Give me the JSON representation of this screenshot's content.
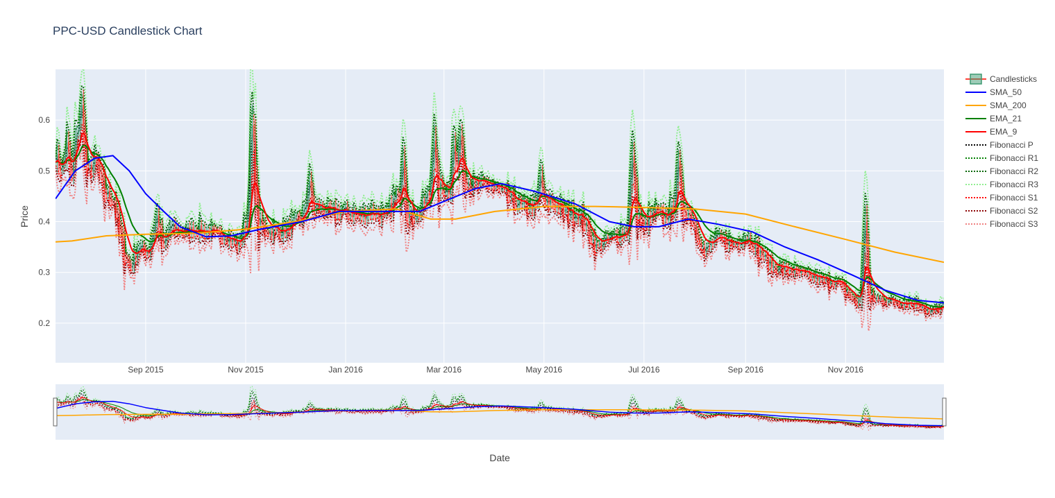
{
  "chart_data": {
    "type": "candlestick",
    "title": "PPC-USD Candlestick Chart",
    "xlabel": "Date",
    "ylabel": "Price",
    "x_range": [
      "2015-07-08",
      "2016-12-31"
    ],
    "ylim": [
      0.122,
      0.7
    ],
    "y_ticks": [
      0.2,
      0.3,
      0.4,
      0.5,
      0.6
    ],
    "y_tick_labels": [
      "0.2",
      "0.3",
      "0.4",
      "0.5",
      "0.6"
    ],
    "x_ticks": [
      "2015-09-01",
      "2015-11-01",
      "2016-01-01",
      "2016-03-01",
      "2016-05-01",
      "2016-07-01",
      "2016-09-01",
      "2016-11-01"
    ],
    "x_tick_labels": [
      "Sep 2015",
      "Nov 2015",
      "Jan 2016",
      "Mar 2016",
      "May 2016",
      "Jul 2016",
      "Sep 2016",
      "Nov 2016"
    ],
    "grid": true,
    "legend_position": "right",
    "rangeslider": true,
    "colors": {
      "plot_bg": "#e5ecf6",
      "grid": "#ffffff",
      "text": "#444444",
      "title": "#2a3f5f",
      "increasing": "#3d9970",
      "decreasing": "#ff4136"
    },
    "close_anchors": [
      [
        "2015-07-08",
        0.53
      ],
      [
        "2015-07-12",
        0.5
      ],
      [
        "2015-07-15",
        0.55
      ],
      [
        "2015-07-18",
        0.49
      ],
      [
        "2015-07-21",
        0.58
      ],
      [
        "2015-07-24",
        0.55
      ],
      [
        "2015-07-28",
        0.5
      ],
      [
        "2015-08-02",
        0.52
      ],
      [
        "2015-08-07",
        0.46
      ],
      [
        "2015-08-13",
        0.44
      ],
      [
        "2015-08-19",
        0.34
      ],
      [
        "2015-08-23",
        0.31
      ],
      [
        "2015-08-28",
        0.35
      ],
      [
        "2015-09-03",
        0.34
      ],
      [
        "2015-09-08",
        0.41
      ],
      [
        "2015-09-12",
        0.35
      ],
      [
        "2015-09-16",
        0.39
      ],
      [
        "2015-09-24",
        0.38
      ],
      [
        "2015-10-01",
        0.385
      ],
      [
        "2015-10-10",
        0.38
      ],
      [
        "2015-10-20",
        0.37
      ],
      [
        "2015-10-28",
        0.355
      ],
      [
        "2015-11-03",
        0.41
      ],
      [
        "2015-11-06",
        0.5
      ],
      [
        "2015-11-09",
        0.4
      ],
      [
        "2015-11-15",
        0.38
      ],
      [
        "2015-11-24",
        0.38
      ],
      [
        "2015-12-01",
        0.4
      ],
      [
        "2015-12-08",
        0.42
      ],
      [
        "2015-12-15",
        0.43
      ],
      [
        "2015-12-22",
        0.42
      ],
      [
        "2016-01-01",
        0.42
      ],
      [
        "2016-01-10",
        0.41
      ],
      [
        "2016-01-17",
        0.42
      ],
      [
        "2016-01-25",
        0.41
      ],
      [
        "2016-02-01",
        0.45
      ],
      [
        "2016-02-06",
        0.42
      ],
      [
        "2016-02-14",
        0.41
      ],
      [
        "2016-02-20",
        0.45
      ],
      [
        "2016-02-26",
        0.47
      ],
      [
        "2016-03-05",
        0.46
      ],
      [
        "2016-03-12",
        0.5
      ],
      [
        "2016-03-18",
        0.47
      ],
      [
        "2016-03-28",
        0.475
      ],
      [
        "2016-04-07",
        0.455
      ],
      [
        "2016-04-17",
        0.43
      ],
      [
        "2016-04-27",
        0.43
      ],
      [
        "2016-05-05",
        0.44
      ],
      [
        "2016-05-14",
        0.42
      ],
      [
        "2016-05-24",
        0.41
      ],
      [
        "2016-06-02",
        0.35
      ],
      [
        "2016-06-12",
        0.37
      ],
      [
        "2016-06-20",
        0.38
      ],
      [
        "2016-06-25",
        0.44
      ],
      [
        "2016-07-01",
        0.39
      ],
      [
        "2016-07-08",
        0.42
      ],
      [
        "2016-07-15",
        0.41
      ],
      [
        "2016-07-22",
        0.44
      ],
      [
        "2016-07-30",
        0.41
      ],
      [
        "2016-08-07",
        0.34
      ],
      [
        "2016-08-15",
        0.37
      ],
      [
        "2016-08-25",
        0.355
      ],
      [
        "2016-09-02",
        0.37
      ],
      [
        "2016-09-10",
        0.34
      ],
      [
        "2016-09-18",
        0.31
      ],
      [
        "2016-09-28",
        0.305
      ],
      [
        "2016-10-08",
        0.295
      ],
      [
        "2016-10-18",
        0.285
      ],
      [
        "2016-10-28",
        0.28
      ],
      [
        "2016-11-08",
        0.24
      ],
      [
        "2016-11-12",
        0.27
      ],
      [
        "2016-11-18",
        0.25
      ],
      [
        "2016-11-26",
        0.245
      ],
      [
        "2016-12-04",
        0.24
      ],
      [
        "2016-12-12",
        0.24
      ],
      [
        "2016-12-18",
        0.235
      ],
      [
        "2016-12-22",
        0.22
      ],
      [
        "2016-12-31",
        0.235
      ]
    ],
    "spikes": [
      [
        "2015-07-24",
        0.63
      ],
      [
        "2015-11-05",
        0.59
      ],
      [
        "2015-12-10",
        0.48
      ],
      [
        "2016-02-05",
        0.52
      ],
      [
        "2016-02-24",
        0.56
      ],
      [
        "2016-03-07",
        0.55
      ],
      [
        "2016-03-11",
        0.57
      ],
      [
        "2016-04-29",
        0.49
      ],
      [
        "2016-06-24",
        0.53
      ],
      [
        "2016-07-22",
        0.52
      ],
      [
        "2016-11-13",
        0.4
      ]
    ],
    "series": [
      {
        "name": "Candlesticks",
        "color": "#3d9970",
        "dash": "solid"
      },
      {
        "name": "SMA_50",
        "color": "#0000ff",
        "dash": "solid",
        "values": [
          [
            "2015-07-08",
            0.445
          ],
          [
            "2015-07-20",
            0.5
          ],
          [
            "2015-08-01",
            0.525
          ],
          [
            "2015-08-12",
            0.53
          ],
          [
            "2015-08-22",
            0.5
          ],
          [
            "2015-09-01",
            0.455
          ],
          [
            "2015-09-12",
            0.42
          ],
          [
            "2015-09-22",
            0.39
          ],
          [
            "2015-10-08",
            0.37
          ],
          [
            "2015-10-23",
            0.372
          ],
          [
            "2015-11-10",
            0.385
          ],
          [
            "2015-12-05",
            0.4
          ],
          [
            "2015-12-28",
            0.42
          ],
          [
            "2016-01-20",
            0.42
          ],
          [
            "2016-02-15",
            0.42
          ],
          [
            "2016-03-01",
            0.44
          ],
          [
            "2016-03-20",
            0.465
          ],
          [
            "2016-04-05",
            0.475
          ],
          [
            "2016-04-25",
            0.46
          ],
          [
            "2016-05-20",
            0.435
          ],
          [
            "2016-06-10",
            0.4
          ],
          [
            "2016-06-25",
            0.39
          ],
          [
            "2016-07-10",
            0.39
          ],
          [
            "2016-07-28",
            0.405
          ],
          [
            "2016-08-15",
            0.395
          ],
          [
            "2016-09-05",
            0.38
          ],
          [
            "2016-09-25",
            0.35
          ],
          [
            "2016-10-15",
            0.325
          ],
          [
            "2016-11-05",
            0.295
          ],
          [
            "2016-11-25",
            0.265
          ],
          [
            "2016-12-15",
            0.245
          ],
          [
            "2016-12-31",
            0.24
          ]
        ]
      },
      {
        "name": "SMA_200",
        "color": "#ffa500",
        "dash": "solid",
        "values": [
          [
            "2015-07-08",
            0.36
          ],
          [
            "2015-07-18",
            0.362
          ],
          [
            "2015-08-08",
            0.372
          ],
          [
            "2015-09-01",
            0.375
          ],
          [
            "2015-10-01",
            0.377
          ],
          [
            "2015-11-01",
            0.385
          ],
          [
            "2015-12-01",
            0.4
          ],
          [
            "2016-01-01",
            0.42
          ],
          [
            "2016-02-01",
            0.425
          ],
          [
            "2016-02-22",
            0.405
          ],
          [
            "2016-03-08",
            0.405
          ],
          [
            "2016-04-01",
            0.42
          ],
          [
            "2016-05-01",
            0.43
          ],
          [
            "2016-06-01",
            0.43
          ],
          [
            "2016-07-01",
            0.428
          ],
          [
            "2016-08-01",
            0.425
          ],
          [
            "2016-09-01",
            0.415
          ],
          [
            "2016-10-01",
            0.39
          ],
          [
            "2016-11-01",
            0.365
          ],
          [
            "2016-12-01",
            0.34
          ],
          [
            "2016-12-31",
            0.32
          ]
        ]
      },
      {
        "name": "EMA_21",
        "color": "#008000",
        "dash": "solid"
      },
      {
        "name": "EMA_9",
        "color": "#ff0000",
        "dash": "solid"
      },
      {
        "name": "Fibonacci P",
        "color": "#000000",
        "dash": "dot"
      },
      {
        "name": "Fibonacci R1",
        "color": "#008000",
        "dash": "dot"
      },
      {
        "name": "Fibonacci R2",
        "color": "#006400",
        "dash": "dot"
      },
      {
        "name": "Fibonacci R3",
        "color": "#90ee90",
        "dash": "dot"
      },
      {
        "name": "Fibonacci S1",
        "color": "#ff0000",
        "dash": "dot"
      },
      {
        "name": "Fibonacci S2",
        "color": "#8b0000",
        "dash": "dot"
      },
      {
        "name": "Fibonacci S3",
        "color": "#f08080",
        "dash": "dot"
      }
    ]
  }
}
